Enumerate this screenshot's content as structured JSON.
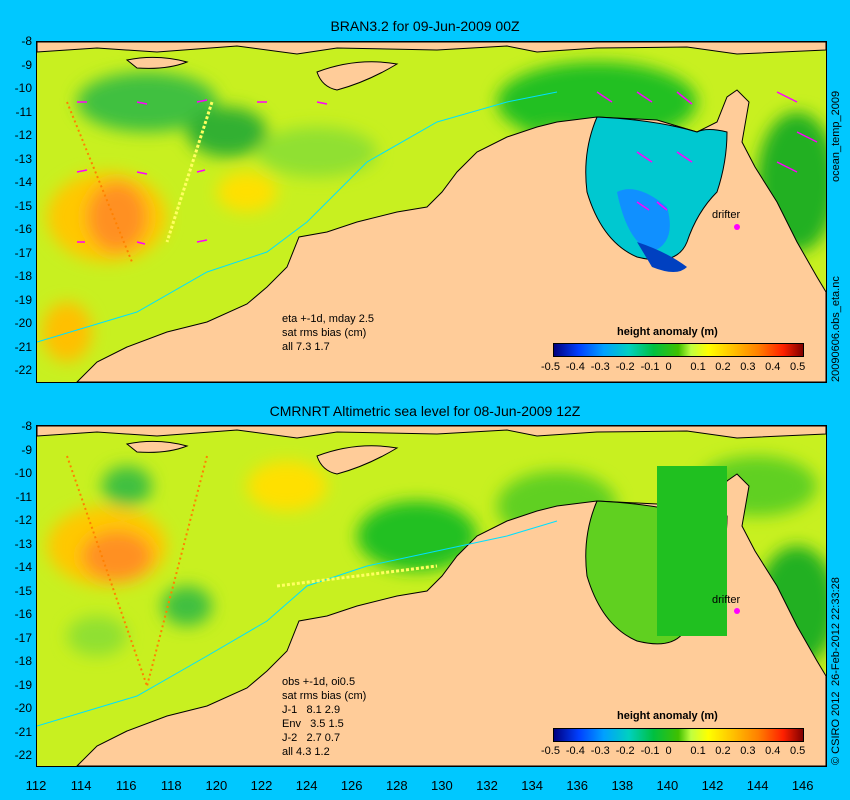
{
  "top_panel": {
    "title": "BRAN3.2 for 09-Jun-2009 00Z",
    "note_lines": [
      "eta +-1d, mday 2.5",
      "sat rms bias (cm)",
      "all 7.3 1.7"
    ],
    "colorbar_title": "height anomaly (m)",
    "colorbar_labels": [
      "-0.5",
      "-0.4",
      "-0.3",
      "-0.2",
      "-0.1",
      "0",
      "0.1",
      "0.2",
      "0.3",
      "0.4",
      "0.5"
    ],
    "drifter_label": "drifter",
    "side_label_upper": "ocean_temp_2009",
    "side_label_lower": "20090606.obs_eta.nc"
  },
  "bottom_panel": {
    "title": "CMRNRT Altimetric sea level  for 08-Jun-2009 12Z",
    "note_lines": [
      "obs +-1d, oi0.5",
      "sat rms bias (cm)",
      "J-1   8.1 2.9",
      "Env   3.5 1.5",
      "J-2   2.7 0.7",
      "all 4.3 1.2"
    ],
    "colorbar_title": "height anomaly (m)",
    "colorbar_labels": [
      "-0.5",
      "-0.4",
      "-0.3",
      "-0.2",
      "-0.1",
      "0",
      "0.1",
      "0.2",
      "0.3",
      "0.4",
      "0.5"
    ],
    "drifter_label": "drifter",
    "side_label_upper": "26-Feb-2012 22:33:28",
    "side_label_lower": "© CSIRO 2012"
  },
  "axes": {
    "y_ticks": [
      "-8",
      "-9",
      "-10",
      "-11",
      "-12",
      "-13",
      "-14",
      "-15",
      "-16",
      "-17",
      "-18",
      "-19",
      "-20",
      "-21",
      "-22"
    ],
    "x_ticks": [
      "112",
      "114",
      "116",
      "118",
      "120",
      "122",
      "124",
      "126",
      "128",
      "130",
      "132",
      "134",
      "136",
      "138",
      "140",
      "142",
      "144",
      "146"
    ],
    "lon_range": [
      112,
      147
    ],
    "lat_range": [
      -8,
      -22.5
    ]
  },
  "colors": {
    "background": "#00c8ff",
    "land": "#ffcc99",
    "drifter": "#ff00ff"
  }
}
